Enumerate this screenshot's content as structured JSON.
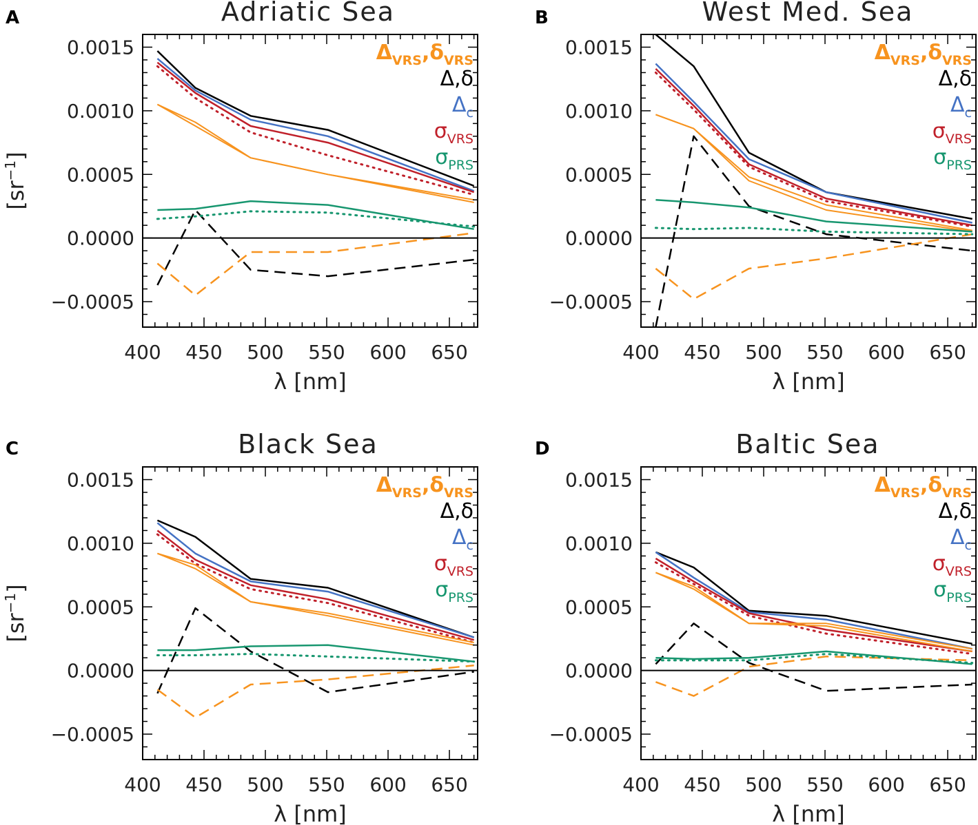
{
  "chart_data": [
    {
      "type": "line",
      "panel_letter": "A",
      "title": "Adriatic Sea",
      "xlabel": "λ [nm]",
      "ylabel": "[sr",
      "ylabel_exp": "−1",
      "ylabel_end": "]",
      "xlim": [
        400,
        673
      ],
      "ylim": [
        -0.0007,
        0.0016
      ],
      "xticks": [
        400,
        450,
        500,
        550,
        600,
        650
      ],
      "xtick_labels": [
        "400",
        "450",
        "500",
        "550",
        "600",
        "650"
      ],
      "yticks": [
        -0.0005,
        0,
        0.0005,
        0.001,
        0.0015
      ],
      "ytick_labels": [
        "−0.0005",
        "0.0000",
        "0.0005",
        "0.0010",
        "0.0015"
      ],
      "x": [
        412,
        443,
        488,
        551,
        670
      ],
      "series": [
        {
          "name": "Δ (solid)",
          "style": "solid",
          "color": "#000000",
          "width": 2.5,
          "values": [
            0.00147,
            0.00118,
            0.00096,
            0.00085,
            0.00041
          ]
        },
        {
          "name": "δ (dashed)",
          "style": "dashed",
          "color": "#000000",
          "width": 2.5,
          "values": [
            -0.00037,
            0.00022,
            -0.00025,
            -0.0003,
            -0.00017
          ]
        },
        {
          "name": "Δc",
          "style": "solid",
          "color": "#4472c4",
          "width": 2.5,
          "values": [
            0.00141,
            0.00116,
            0.00093,
            0.0008,
            0.00037
          ]
        },
        {
          "name": "σVRS (solid)",
          "style": "solid",
          "color": "#c0202a",
          "width": 2.5,
          "values": [
            0.00138,
            0.00114,
            0.00088,
            0.00075,
            0.00036
          ]
        },
        {
          "name": "σVRS (dotted)",
          "style": "dotted",
          "color": "#c0202a",
          "width": 3,
          "values": [
            0.00135,
            0.0011,
            0.00083,
            0.00065,
            0.00034
          ]
        },
        {
          "name": "ΔVRS upper",
          "style": "solid",
          "color": "#f7931e",
          "width": 2,
          "values": [
            0.00105,
            0.00091,
            0.00063,
            0.0005,
            0.0003
          ]
        },
        {
          "name": "ΔVRS lower",
          "style": "solid",
          "color": "#f7931e",
          "width": 2,
          "values": [
            0.00105,
            0.00088,
            0.00063,
            0.0005,
            0.00028
          ]
        },
        {
          "name": "δVRS (dashed)",
          "style": "dashed",
          "color": "#f7931e",
          "width": 2.5,
          "values": [
            -0.0002,
            -0.00045,
            -0.00011,
            -0.00011,
            4e-05
          ]
        },
        {
          "name": "σPRS (solid)",
          "style": "solid",
          "color": "#17966f",
          "width": 2.5,
          "values": [
            0.00022,
            0.00023,
            0.00029,
            0.00026,
            7e-05
          ]
        },
        {
          "name": "σPRS (dotted)",
          "style": "dotted",
          "color": "#17966f",
          "width": 3,
          "values": [
            0.00015,
            0.00017,
            0.00021,
            0.0002,
            9e-05
          ]
        }
      ]
    },
    {
      "type": "line",
      "panel_letter": "B",
      "title": "West Med. Sea",
      "xlabel": "λ [nm]",
      "ylabel": "",
      "ylabel_exp": "",
      "ylabel_end": "",
      "xlim": [
        400,
        673
      ],
      "ylim": [
        -0.0007,
        0.0016
      ],
      "xticks": [
        400,
        450,
        500,
        550,
        600,
        650
      ],
      "xtick_labels": [
        "400",
        "450",
        "500",
        "550",
        "600",
        "650"
      ],
      "yticks": [
        -0.0005,
        0,
        0.0005,
        0.001,
        0.0015
      ],
      "ytick_labels": [
        "−0.0005",
        "0.0000",
        "0.0005",
        "0.0010",
        "0.0015"
      ],
      "x": [
        412,
        443,
        488,
        551,
        670
      ],
      "series": [
        {
          "name": "Δ (solid)",
          "style": "solid",
          "color": "#000000",
          "width": 2.5,
          "values": [
            0.0016,
            0.00135,
            0.00067,
            0.00036,
            0.00015
          ]
        },
        {
          "name": "δ (dashed)",
          "style": "dashed",
          "color": "#000000",
          "width": 2.5,
          "values": [
            -0.0007,
            0.0008,
            0.00025,
            3e-05,
            -0.0001
          ]
        },
        {
          "name": "Δc",
          "style": "solid",
          "color": "#4472c4",
          "width": 2.5,
          "values": [
            0.00137,
            0.00107,
            0.00062,
            0.00036,
            0.00012
          ]
        },
        {
          "name": "σVRS (solid)",
          "style": "solid",
          "color": "#c0202a",
          "width": 2.5,
          "values": [
            0.00133,
            0.00104,
            0.00058,
            0.00031,
            0.0001
          ]
        },
        {
          "name": "σVRS (dotted)",
          "style": "dotted",
          "color": "#c0202a",
          "width": 3,
          "values": [
            0.0013,
            0.00101,
            0.00056,
            0.00029,
            9e-05
          ]
        },
        {
          "name": "ΔVRS upper",
          "style": "solid",
          "color": "#f7931e",
          "width": 2,
          "values": [
            0.00097,
            0.00086,
            0.00048,
            0.00026,
            6e-05
          ]
        },
        {
          "name": "ΔVRS lower",
          "style": "solid",
          "color": "#f7931e",
          "width": 2,
          "values": [
            0.00097,
            0.00086,
            0.00045,
            0.00022,
            5e-05
          ]
        },
        {
          "name": "δVRS (dashed)",
          "style": "dashed",
          "color": "#f7931e",
          "width": 2.5,
          "values": [
            -0.00024,
            -0.00048,
            -0.00024,
            -0.00016,
            3e-05
          ]
        },
        {
          "name": "σPRS (solid)",
          "style": "solid",
          "color": "#17966f",
          "width": 2.5,
          "values": [
            0.0003,
            0.00028,
            0.00024,
            0.00013,
            5e-05
          ]
        },
        {
          "name": "σPRS (dotted)",
          "style": "dotted",
          "color": "#17966f",
          "width": 3,
          "values": [
            8e-05,
            7e-05,
            8e-05,
            5e-05,
            3e-05
          ]
        }
      ]
    },
    {
      "type": "line",
      "panel_letter": "C",
      "title": "Black Sea",
      "xlabel": "λ [nm]",
      "ylabel": "[sr",
      "ylabel_exp": "−1",
      "ylabel_end": "]",
      "xlim": [
        400,
        673
      ],
      "ylim": [
        -0.0007,
        0.0016
      ],
      "xticks": [
        400,
        450,
        500,
        550,
        600,
        650
      ],
      "xtick_labels": [
        "400",
        "450",
        "500",
        "550",
        "600",
        "650"
      ],
      "yticks": [
        -0.0005,
        0,
        0.0005,
        0.001,
        0.0015
      ],
      "ytick_labels": [
        "−0.0005",
        "0.0000",
        "0.0005",
        "0.0010",
        "0.0015"
      ],
      "x": [
        412,
        443,
        488,
        551,
        670
      ],
      "series": [
        {
          "name": "Δ (solid)",
          "style": "solid",
          "color": "#000000",
          "width": 2.5,
          "values": [
            0.00118,
            0.00105,
            0.00072,
            0.00065,
            0.00026
          ]
        },
        {
          "name": "δ (dashed)",
          "style": "dashed",
          "color": "#000000",
          "width": 2.5,
          "values": [
            -0.00018,
            0.00049,
            0.00015,
            -0.00017,
            -1e-05
          ]
        },
        {
          "name": "Δc",
          "style": "solid",
          "color": "#4472c4",
          "width": 2.5,
          "values": [
            0.00116,
            0.00092,
            0.0007,
            0.00062,
            0.00026
          ]
        },
        {
          "name": "σVRS (solid)",
          "style": "solid",
          "color": "#c0202a",
          "width": 2.5,
          "values": [
            0.0011,
            0.00087,
            0.00067,
            0.00056,
            0.00024
          ]
        },
        {
          "name": "σVRS (dotted)",
          "style": "dotted",
          "color": "#c0202a",
          "width": 3,
          "values": [
            0.00107,
            0.00084,
            0.00064,
            0.00053,
            0.00022
          ]
        },
        {
          "name": "ΔVRS upper",
          "style": "solid",
          "color": "#f7931e",
          "width": 2,
          "values": [
            0.00092,
            0.00083,
            0.00054,
            0.00045,
            0.00022
          ]
        },
        {
          "name": "ΔVRS lower",
          "style": "solid",
          "color": "#f7931e",
          "width": 2,
          "values": [
            0.00092,
            0.0008,
            0.00054,
            0.00043,
            0.0002
          ]
        },
        {
          "name": "δVRS (dashed)",
          "style": "dashed",
          "color": "#f7931e",
          "width": 2.5,
          "values": [
            -0.00015,
            -0.00037,
            -0.00011,
            -7e-05,
            4e-05
          ]
        },
        {
          "name": "σPRS (solid)",
          "style": "solid",
          "color": "#17966f",
          "width": 2.5,
          "values": [
            0.00016,
            0.00016,
            0.00019,
            0.0002,
            7e-05
          ]
        },
        {
          "name": "σPRS (dotted)",
          "style": "dotted",
          "color": "#17966f",
          "width": 3,
          "values": [
            0.00012,
            0.00012,
            0.00013,
            0.00011,
            7e-05
          ]
        }
      ]
    },
    {
      "type": "line",
      "panel_letter": "D",
      "title": "Baltic Sea",
      "xlabel": "λ [nm]",
      "ylabel": "",
      "ylabel_exp": "",
      "ylabel_end": "",
      "xlim": [
        400,
        673
      ],
      "ylim": [
        -0.0007,
        0.0016
      ],
      "xticks": [
        400,
        450,
        500,
        550,
        600,
        650
      ],
      "xtick_labels": [
        "400",
        "450",
        "500",
        "550",
        "600",
        "650"
      ],
      "yticks": [
        -0.0005,
        0,
        0.0005,
        0.001,
        0.0015
      ],
      "ytick_labels": [
        "−0.0005",
        "0.0000",
        "0.0005",
        "0.0010",
        "0.0015"
      ],
      "x": [
        412,
        443,
        488,
        551,
        670
      ],
      "series": [
        {
          "name": "Δ (solid)",
          "style": "solid",
          "color": "#000000",
          "width": 2.5,
          "values": [
            0.00093,
            0.00081,
            0.00047,
            0.00043,
            0.00021
          ]
        },
        {
          "name": "δ (dashed)",
          "style": "dashed",
          "color": "#000000",
          "width": 2.5,
          "values": [
            5e-05,
            0.00037,
            6e-05,
            -0.00016,
            -0.00011
          ]
        },
        {
          "name": "Δc",
          "style": "solid",
          "color": "#4472c4",
          "width": 2.5,
          "values": [
            0.00093,
            0.00073,
            0.00046,
            0.0004,
            0.00017
          ]
        },
        {
          "name": "σVRS (solid)",
          "style": "solid",
          "color": "#c0202a",
          "width": 2.5,
          "values": [
            0.00088,
            0.0007,
            0.00045,
            0.00032,
            0.00015
          ]
        },
        {
          "name": "σVRS (dotted)",
          "style": "dotted",
          "color": "#c0202a",
          "width": 3,
          "values": [
            0.00085,
            0.00068,
            0.00043,
            0.00029,
            0.00013
          ]
        },
        {
          "name": "ΔVRS upper",
          "style": "solid",
          "color": "#f7931e",
          "width": 2,
          "values": [
            0.00077,
            0.00066,
            0.00037,
            0.00037,
            0.00017
          ]
        },
        {
          "name": "ΔVRS lower",
          "style": "solid",
          "color": "#f7931e",
          "width": 2,
          "values": [
            0.00077,
            0.00064,
            0.00037,
            0.00035,
            0.00015
          ]
        },
        {
          "name": "δVRS (dashed)",
          "style": "dashed",
          "color": "#f7931e",
          "width": 2.5,
          "values": [
            -9e-05,
            -0.0002,
            3e-05,
            0.00011,
            8e-05
          ]
        },
        {
          "name": "σPRS (solid)",
          "style": "solid",
          "color": "#17966f",
          "width": 2.5,
          "values": [
            0.0001,
            9e-05,
            0.0001,
            0.00015,
            5e-05
          ]
        },
        {
          "name": "σPRS (dotted)",
          "style": "dotted",
          "color": "#17966f",
          "width": 3,
          "values": [
            8e-05,
            8e-05,
            8e-05,
            0.00013,
            6e-05
          ]
        }
      ]
    }
  ],
  "legend": [
    {
      "base": "Δ",
      "sub": "VRS",
      "sep": ",",
      "base2": "δ",
      "sub2": "VRS",
      "color": "#f7931e"
    },
    {
      "base": "Δ,δ",
      "sub": "",
      "sep": "",
      "base2": "",
      "sub2": "",
      "color": "#000000"
    },
    {
      "base": "Δ",
      "sub": "c",
      "sep": "",
      "base2": "",
      "sub2": "",
      "color": "#4472c4"
    },
    {
      "base": "σ",
      "sub": "VRS",
      "sep": "",
      "base2": "",
      "sub2": "",
      "color": "#c0202a"
    },
    {
      "base": "σ",
      "sub": "PRS",
      "sep": "",
      "base2": "",
      "sub2": "",
      "color": "#17966f"
    }
  ]
}
